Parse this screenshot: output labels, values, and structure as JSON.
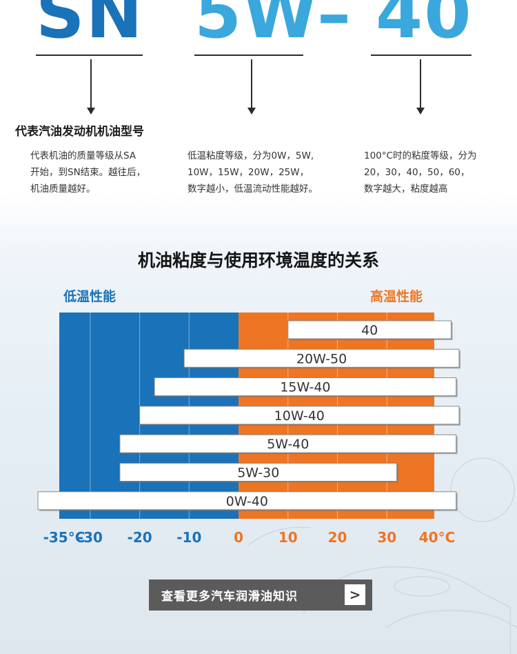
{
  "header": {
    "sn": "SN",
    "w5": "5W",
    "dash": "–",
    "n40": "40"
  },
  "meaning_title": "代表汽油发动机机油型号",
  "descriptions": {
    "sn": [
      "代表机油的质量等级从SA",
      "开始，到SN结束。越往后，",
      "机油质量越好。"
    ],
    "low": [
      "低温粘度等级，分为0W，5W,",
      "10W，15W，20W，25W，",
      "数字越小，低温流动性能越好。"
    ],
    "high": [
      "100°C时的粘度等级，分为",
      "20，30，40，50，60，",
      "数字越大，粘度越高"
    ]
  },
  "chart_title": "机油粘度与使用环境温度的关系",
  "low_label": "低温性能",
  "high_label": "高温性能",
  "colors": {
    "cold": "#1a72b8",
    "hot": "#ee7523",
    "text_dark": "#333333"
  },
  "chart_data": {
    "type": "bar",
    "orientation": "horizontal-range",
    "xlim": [
      -40,
      45
    ],
    "x_ticks": [
      {
        "value": -35,
        "label": "-35°C"
      },
      {
        "value": -30,
        "label": "-30"
      },
      {
        "value": -20,
        "label": "-20"
      },
      {
        "value": -10,
        "label": "-10"
      },
      {
        "value": 0,
        "label": "0"
      },
      {
        "value": 10,
        "label": "10"
      },
      {
        "value": 20,
        "label": "20"
      },
      {
        "value": 30,
        "label": "30"
      },
      {
        "value": 40,
        "label": "40°C"
      }
    ],
    "cold_range": [
      -40,
      0
    ],
    "hot_range": [
      0,
      40
    ],
    "bars": [
      {
        "label": "40",
        "min": 10,
        "max": 43
      },
      {
        "label": "20W-50",
        "min": -11,
        "max": 45
      },
      {
        "label": "15W-40",
        "min": -17,
        "max": 44
      },
      {
        "label": "10W-40",
        "min": -20,
        "max": 45
      },
      {
        "label": "5W-40",
        "min": -24,
        "max": 44
      },
      {
        "label": "5W-30",
        "min": -24,
        "max": 32
      },
      {
        "label": "0W-40",
        "min": -44,
        "max": 44
      }
    ]
  },
  "button": {
    "label": "查看更多汽车润滑油知识",
    "chevron": ">"
  }
}
